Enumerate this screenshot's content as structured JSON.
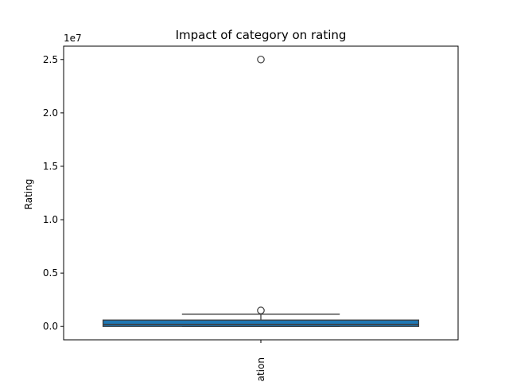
{
  "chart_data": {
    "type": "box",
    "title": "Impact of category on rating",
    "xlabel": "",
    "ylabel": "Rating",
    "offset_label": "1e7",
    "categories": [
      "Education"
    ],
    "visible_category_label": "cation",
    "ylim": [
      -1250000,
      26250000
    ],
    "yticks": [
      0,
      5000000,
      10000000,
      15000000,
      20000000,
      25000000
    ],
    "ytick_labels": [
      "0.0",
      "0.5",
      "1.0",
      "1.5",
      "2.0",
      "2.5"
    ],
    "boxes": [
      {
        "category": "Education",
        "whisker_low": 0,
        "q1": 0,
        "median": 200000,
        "q3": 600000,
        "whisker_high": 1150000,
        "outliers": [
          1500000,
          25000000
        ]
      }
    ],
    "colors": {
      "box": "#1f77b4",
      "lines": "#3d3d3d"
    },
    "grid": false,
    "legend": "none"
  }
}
